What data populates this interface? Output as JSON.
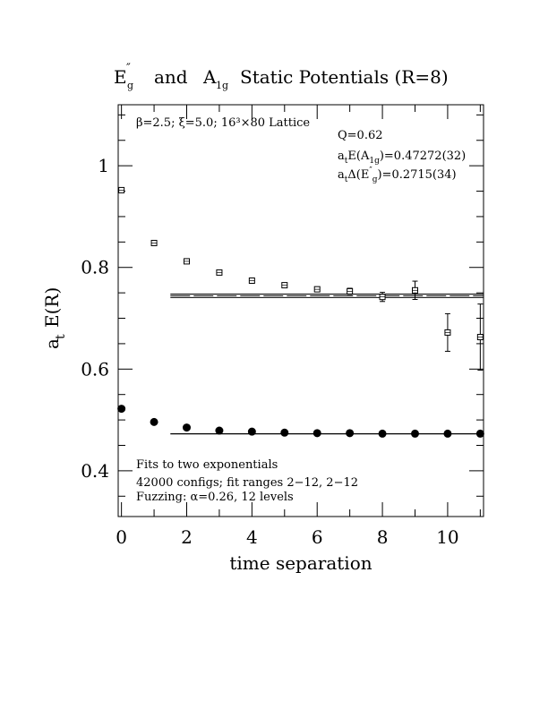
{
  "chart_data": {
    "type": "scatter",
    "title_text": "and",
    "title_text2": "Static Potentials (R=8)",
    "title_sym1_main": "E",
    "title_sym1_sup": "″",
    "title_sym1_sub": "g",
    "title_sym2_main": "A",
    "title_sym2_sub": "1g",
    "xlabel": "time separation",
    "ylabel_main": "a",
    "ylabel_sub": "t",
    "ylabel_rest": "E(R)",
    "xlim": [
      -0.1,
      11.1
    ],
    "ylim": [
      0.31,
      1.12
    ],
    "x_ticks": [
      0,
      2,
      4,
      6,
      8,
      10
    ],
    "x_tick_labels": [
      "0",
      "2",
      "4",
      "6",
      "8",
      "10"
    ],
    "y_ticks": [
      0.4,
      0.6,
      0.8,
      1.0
    ],
    "y_tick_labels": [
      "0.4",
      "0.6",
      "0.8",
      "1"
    ],
    "top_left_text": "β=2.5; ξ=5.0; 16³×80 Lattice",
    "q_text": "Q=0.62",
    "fit_a1g_pre": "a",
    "fit_a1g_sub": "t",
    "fit_a1g_mid": "E(A",
    "fit_a1g_sub2": "1g",
    "fit_a1g_post": ")=0.47272(32)",
    "fit_eg_pre": "a",
    "fit_eg_sub": "t",
    "fit_eg_mid": "Δ(E",
    "fit_eg_sup": "″",
    "fit_eg_sub2": "g",
    "fit_eg_post": ")=0.2715(34)",
    "bottom_notes": [
      "Fits to two exponentials",
      "42000 configs; fit ranges 2−12, 2−12",
      "Fuzzing: α=0.26, 12 levels"
    ],
    "series": [
      {
        "marker": "open-square",
        "x": [
          0,
          1,
          2,
          3,
          4,
          5,
          6,
          7,
          8,
          9,
          10,
          11
        ],
        "y": [
          0.952,
          0.848,
          0.812,
          0.79,
          0.774,
          0.765,
          0.757,
          0.753,
          0.742,
          0.755,
          0.672,
          0.663
        ],
        "err": [
          0.002,
          0.002,
          0.002,
          0.002,
          0.002,
          0.003,
          0.004,
          0.006,
          0.009,
          0.018,
          0.037,
          0.065
        ]
      },
      {
        "marker": "filled-circle",
        "x": [
          0,
          1,
          2,
          3,
          4,
          5,
          6,
          7,
          8,
          9,
          10,
          11
        ],
        "y": [
          0.522,
          0.496,
          0.485,
          0.479,
          0.477,
          0.475,
          0.474,
          0.474,
          0.473,
          0.473,
          0.473,
          0.473
        ],
        "err": [
          0,
          0,
          0,
          0,
          0,
          0,
          0,
          0,
          0,
          0,
          0,
          0
        ]
      }
    ],
    "fit_lines": [
      {
        "type": "band",
        "x": [
          1.5,
          11.1
        ],
        "y": 0.7442,
        "halfwidth": 0.0034
      },
      {
        "type": "line",
        "x": [
          1.5,
          11.1
        ],
        "y": 0.47272
      }
    ]
  }
}
